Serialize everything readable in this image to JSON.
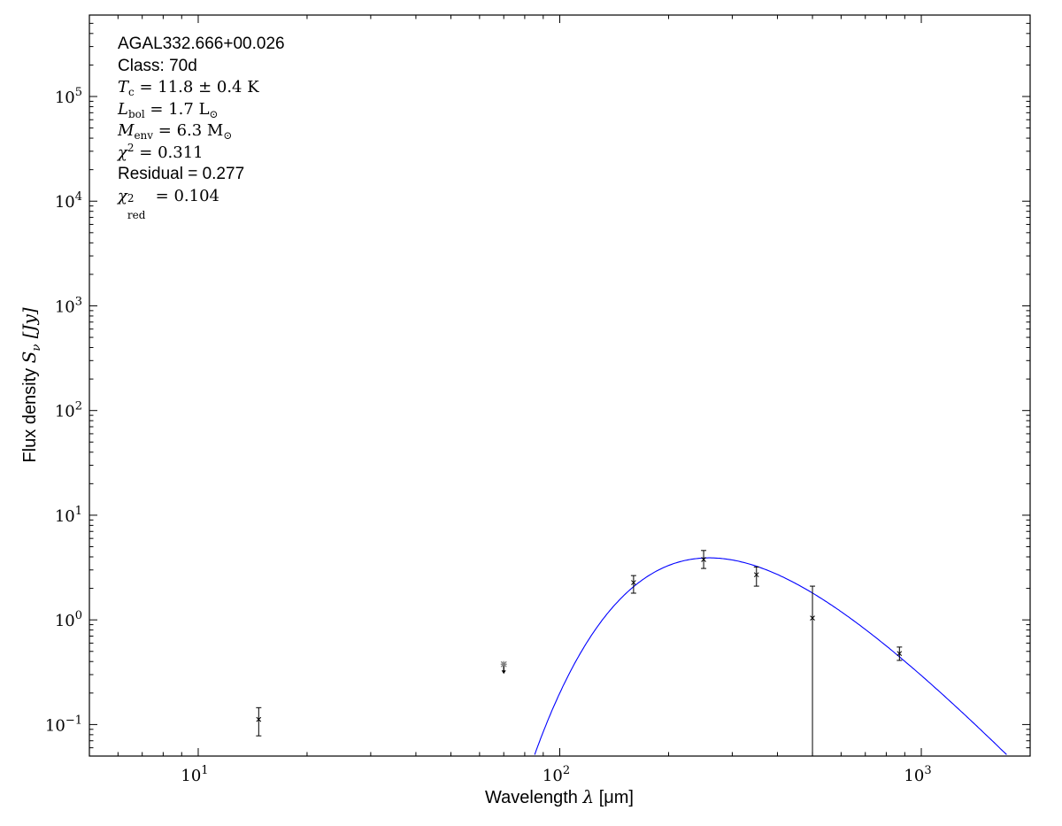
{
  "chart_data": {
    "type": "scatter",
    "xscale": "log",
    "yscale": "log",
    "xlim": [
      5,
      2000
    ],
    "ylim": [
      0.05,
      600000
    ],
    "xlabel": {
      "text": "Wavelength ",
      "symbol": "λ",
      "unit": " [μm]"
    },
    "ylabel": {
      "text": "Flux density ",
      "symbol": "S",
      "sub": "ν",
      "unit": " [Jy]"
    },
    "xticks": [
      {
        "value": 10,
        "base": "10",
        "exp": "1"
      },
      {
        "value": 100,
        "base": "10",
        "exp": "2"
      },
      {
        "value": 1000,
        "base": "10",
        "exp": "3"
      }
    ],
    "yticks": [
      {
        "value": 0.1,
        "base": "10",
        "exp": "−1"
      },
      {
        "value": 1,
        "base": "10",
        "exp": "0"
      },
      {
        "value": 10,
        "base": "10",
        "exp": "1"
      },
      {
        "value": 100,
        "base": "10",
        "exp": "2"
      },
      {
        "value": 1000,
        "base": "10",
        "exp": "3"
      },
      {
        "value": 10000,
        "base": "10",
        "exp": "4"
      },
      {
        "value": 100000,
        "base": "10",
        "exp": "5"
      }
    ],
    "points": [
      {
        "x": 14.7,
        "y": 0.112,
        "ylo": 0.078,
        "yhi": 0.145
      },
      {
        "x": 160,
        "y": 2.27,
        "ylo": 1.8,
        "yhi": 2.65
      },
      {
        "x": 250,
        "y": 3.77,
        "ylo": 3.1,
        "yhi": 4.6
      },
      {
        "x": 350,
        "y": 2.7,
        "ylo": 2.1,
        "yhi": 3.2
      },
      {
        "x": 500,
        "y": 1.04,
        "ylo": 0.05,
        "yhi": 2.1
      },
      {
        "x": 870,
        "y": 0.477,
        "ylo": 0.41,
        "yhi": 0.55
      }
    ],
    "upper_limits": [
      {
        "x": 70,
        "y": 0.377
      }
    ],
    "model": {
      "type": "greybody",
      "temperature_K": 11.8,
      "peak_x": 250,
      "peak_y": 3.9,
      "color": "#0000ff"
    },
    "marker_color": "#000000",
    "upper_limit_color": "#808080",
    "grid": false,
    "legend": "none"
  },
  "annotation": {
    "source": "AGAL332.666+00.026",
    "class_line": "Class: 70d",
    "tc": {
      "sym": "T",
      "sub": "c",
      "rest": " = 11.8 ± 0.4 K"
    },
    "lbol": {
      "sym": "L",
      "sub": "bol",
      "rest": " = 1.7 L",
      "rest_sub": "⊙"
    },
    "menv": {
      "sym": "M",
      "sub": "env",
      "rest": " = 6.3 M",
      "rest_sub": "⊙"
    },
    "chi2": {
      "sym": "χ",
      "sup": "2",
      "rest": " = 0.311"
    },
    "residual": "Residual = 0.277",
    "chi2red": {
      "sym": "χ",
      "sup": "2",
      "sub": "red",
      "rest": " = 0.104"
    }
  }
}
